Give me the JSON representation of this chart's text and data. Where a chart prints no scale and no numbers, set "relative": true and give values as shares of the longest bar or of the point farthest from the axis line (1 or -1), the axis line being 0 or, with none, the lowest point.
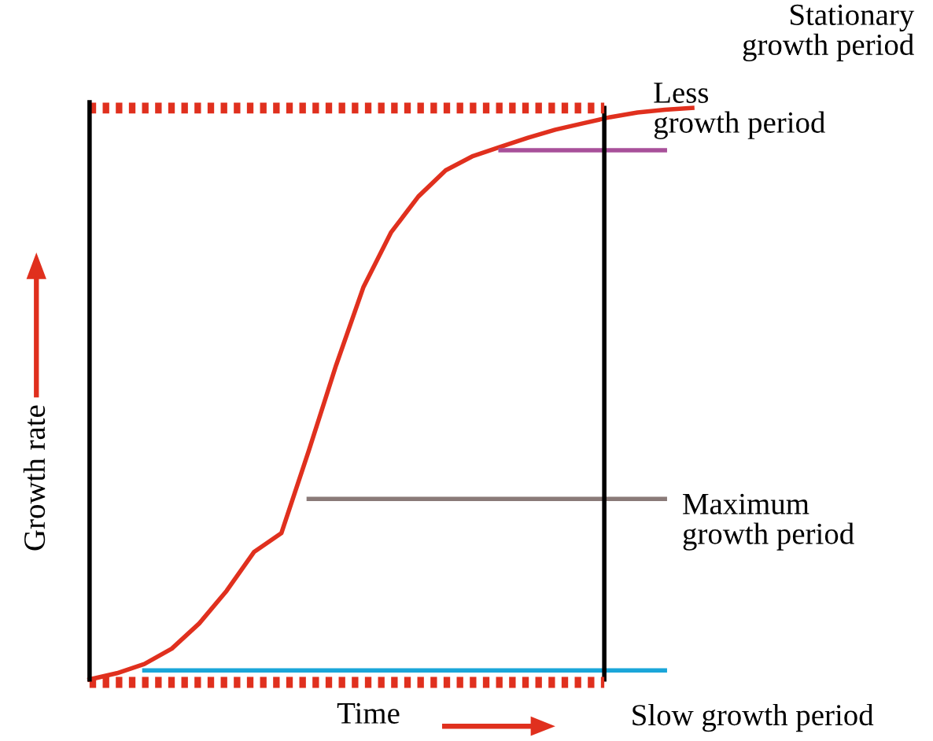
{
  "chart_data": {
    "type": "line",
    "relative": true,
    "xlabel": "Time",
    "ylabel": "Growth rate",
    "categories": [
      null,
      null,
      null,
      null,
      null,
      null,
      null,
      null,
      null,
      null,
      null,
      null,
      null,
      null,
      null,
      null,
      null,
      null,
      null,
      null,
      null,
      null,
      null
    ],
    "series": [
      {
        "color": "#e0301e",
        "values": [
          0,
          0.011,
          0.027,
          0.054,
          0.098,
          0.155,
          0.223,
          0.256,
          0.4,
          0.55,
          0.687,
          0.782,
          0.845,
          0.891,
          0.916,
          0.932,
          0.948,
          0.962,
          0.973,
          0.984,
          0.992,
          0.997,
          1
        ]
      },
      {
        "color": "#1aa6d9",
        "values": [
          null,
          null,
          0.016,
          0.016,
          0.016,
          0.016,
          0.016,
          0.016,
          0.016,
          0.016,
          0.016,
          0.016,
          0.016,
          0.016,
          0.016,
          0.016,
          0.016,
          0.016,
          0.016,
          0.016,
          0.016,
          0.016,
          null
        ]
      },
      {
        "color": "#8a7a78",
        "values": [
          null,
          null,
          null,
          null,
          null,
          null,
          null,
          null,
          0.316,
          0.316,
          0.316,
          0.316,
          0.316,
          0.316,
          0.316,
          0.316,
          0.316,
          0.316,
          0.316,
          0.316,
          0.316,
          0.316,
          null
        ]
      },
      {
        "color": "#a8509a",
        "values": [
          null,
          null,
          null,
          null,
          null,
          null,
          null,
          null,
          null,
          null,
          null,
          null,
          null,
          null,
          null,
          0.926,
          0.926,
          0.926,
          0.926,
          0.926,
          0.926,
          0.926,
          null
        ]
      }
    ],
    "annotations": [
      "Stationary\ngrowth period",
      "Less\ngrowth period",
      "Maximum\ngrowth period",
      "Slow growth period"
    ],
    "legend": false,
    "grid": false,
    "marker": "none",
    "line_style": "solid"
  }
}
